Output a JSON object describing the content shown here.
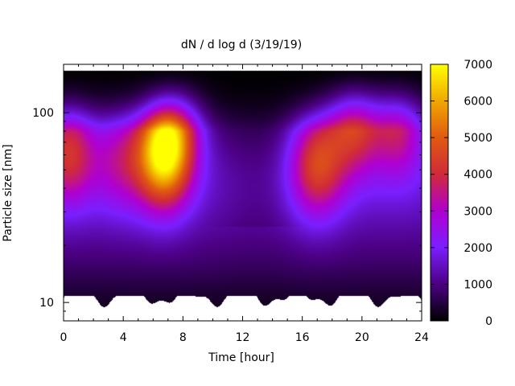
{
  "chart_data": {
    "type": "heatmap",
    "title": "dN / d log d (3/19/19)",
    "xlabel": "Time [hour]",
    "ylabel": "Particle size [nm]",
    "xlim": [
      0,
      24
    ],
    "ylim": [
      8,
      180
    ],
    "yscale": "log",
    "x_ticks": [
      "0",
      "4",
      "8",
      "12",
      "16",
      "20",
      "24"
    ],
    "x_tick_values": [
      0,
      4,
      8,
      12,
      16,
      20,
      24
    ],
    "y_ticks": [
      "10",
      "100"
    ],
    "y_tick_values": [
      10,
      100
    ],
    "colorbar": {
      "range": [
        0,
        7000
      ],
      "ticks": [
        "0",
        "1000",
        "2000",
        "3000",
        "4000",
        "5000",
        "6000",
        "7000"
      ],
      "tick_values": [
        0,
        1000,
        2000,
        3000,
        4000,
        5000,
        6000,
        7000
      ],
      "colormap": [
        "#000000",
        "#4b0082",
        "#7a1fff",
        "#b000d0",
        "#d02a3a",
        "#e05a10",
        "#f0a800",
        "#ffff00"
      ]
    },
    "features": [
      {
        "time_hour": 0.3,
        "size_nm": 65,
        "value": 4200
      },
      {
        "time_hour": 3.8,
        "size_nm": 60,
        "value": 3000
      },
      {
        "time_hour": 6.7,
        "size_nm": 62,
        "value": 6500
      },
      {
        "time_hour": 7.5,
        "size_nm": 95,
        "value": 3400
      },
      {
        "time_hour": 17.0,
        "size_nm": 55,
        "value": 4300
      },
      {
        "time_hour": 19.5,
        "size_nm": 95,
        "value": 4600
      },
      {
        "time_hour": 22.5,
        "size_nm": 90,
        "value": 3900
      }
    ],
    "grid": false,
    "legend": "colorbar-right"
  }
}
